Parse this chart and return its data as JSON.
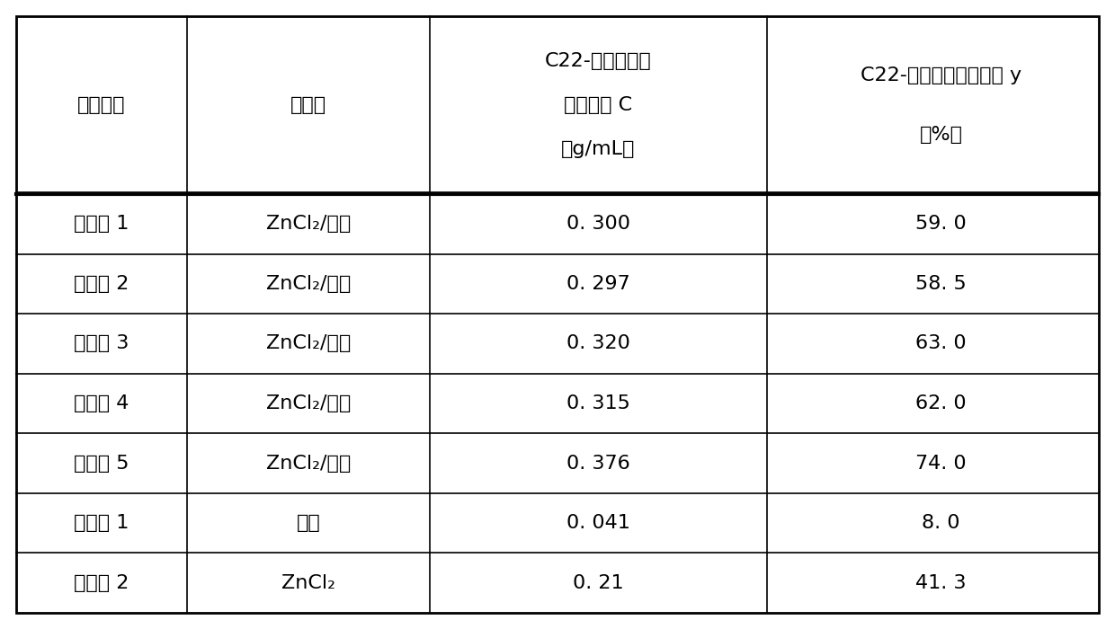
{
  "col_headers_line1": [
    "实验编号",
    "催化剂",
    "C22-环脂肪三酸",
    "C22-环脂肪三酸酯产率 y"
  ],
  "col_headers_line2": [
    "",
    "",
    "酯的浓度 C",
    "（%）"
  ],
  "col_headers_line3": [
    "",
    "",
    "（g/mL）",
    ""
  ],
  "rows": [
    [
      "实施例 1",
      "ZnCl₂/凹土",
      "0. 300",
      "59. 0"
    ],
    [
      "实施例 2",
      "ZnCl₂/凹土",
      "0. 297",
      "58. 5"
    ],
    [
      "实施例 3",
      "ZnCl₂/凹土",
      "0. 320",
      "63. 0"
    ],
    [
      "实施例 4",
      "ZnCl₂/凹土",
      "0. 315",
      "62. 0"
    ],
    [
      "实施例 5",
      "ZnCl₂/凹土",
      "0. 376",
      "74. 0"
    ],
    [
      "比较例 1",
      "凹土",
      "0. 041",
      "8. 0"
    ],
    [
      "比较例 2",
      "ZnCl₂",
      "0. 21",
      "41. 3"
    ]
  ],
  "background_color": "#ffffff",
  "border_color": "#000000",
  "text_color": "#000000",
  "fig_width": 12.4,
  "fig_height": 7.0
}
